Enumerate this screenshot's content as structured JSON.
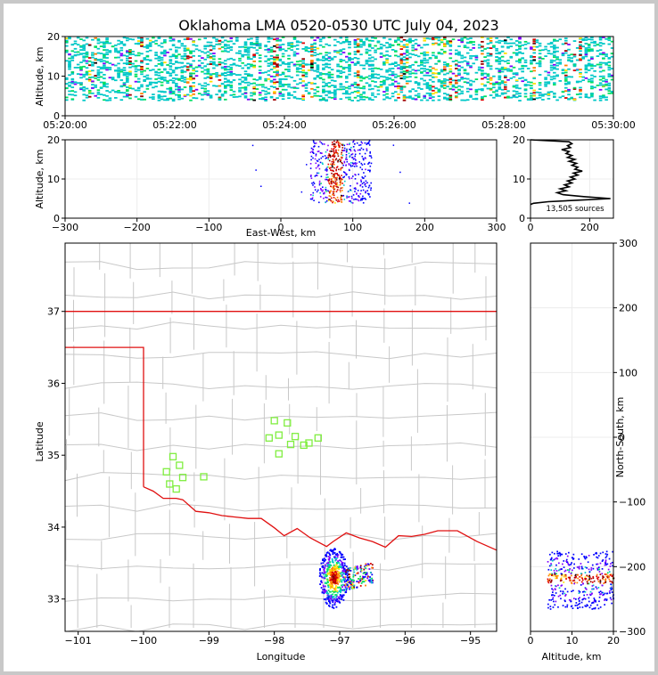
{
  "title": "Oklahoma LMA 0520-0530 UTC July 04, 2023",
  "colors": {
    "state_border": "#e01010",
    "county_border": "#c8c8c8",
    "station": "#80ee40",
    "density": [
      "#0000ff",
      "#8000ff",
      "#00c8c8",
      "#00e060",
      "#ffe000",
      "#ff8000",
      "#e00000",
      "#a00000",
      "#000000"
    ]
  },
  "chart_data": [
    {
      "id": "time_altitude",
      "type": "heatmap",
      "ylabel": "Altitude, km",
      "xticks": [
        "05:20:00",
        "05:22:00",
        "05:24:00",
        "05:26:00",
        "05:28:00",
        "05:30:00"
      ],
      "yticks": [
        "0",
        "10",
        "20"
      ],
      "xlim": [
        "05:20:00",
        "05:30:00"
      ],
      "ylim": [
        0,
        20
      ],
      "altitude_range_km": [
        4,
        20
      ]
    },
    {
      "id": "ew_altitude",
      "type": "heatmap",
      "xlabel": "East-West, km",
      "ylabel": "Altitude, km",
      "xticks": [
        "−300",
        "−200",
        "−100",
        "0",
        "100",
        "200",
        "300"
      ],
      "yticks": [
        "0",
        "10",
        "20"
      ],
      "xlim": [
        -300,
        300
      ],
      "ylim": [
        0,
        20
      ],
      "core_x_km": [
        65,
        85
      ],
      "spread_x_km": [
        40,
        125
      ],
      "altitude_range_km": [
        4,
        20
      ]
    },
    {
      "id": "altitude_histogram",
      "type": "line",
      "xticks": [
        "0",
        "200"
      ],
      "yticks": [
        "0",
        "10",
        "20"
      ],
      "xlim": [
        0,
        280
      ],
      "ylim": [
        0,
        20
      ],
      "annotation": "13,505 sources",
      "profile": [
        [
          0,
          3.5
        ],
        [
          10,
          3.8
        ],
        [
          60,
          4.2
        ],
        [
          160,
          4.6
        ],
        [
          270,
          5.0
        ],
        [
          180,
          5.5
        ],
        [
          110,
          6.0
        ],
        [
          90,
          6.5
        ],
        [
          120,
          7.0
        ],
        [
          100,
          7.5
        ],
        [
          130,
          8.0
        ],
        [
          115,
          8.5
        ],
        [
          140,
          9.0
        ],
        [
          125,
          9.5
        ],
        [
          150,
          10.0
        ],
        [
          135,
          10.5
        ],
        [
          160,
          11.0
        ],
        [
          145,
          11.5
        ],
        [
          175,
          12.0
        ],
        [
          150,
          12.5
        ],
        [
          160,
          13.0
        ],
        [
          140,
          13.5
        ],
        [
          155,
          14.0
        ],
        [
          130,
          14.5
        ],
        [
          150,
          15.0
        ],
        [
          125,
          15.5
        ],
        [
          140,
          16.0
        ],
        [
          120,
          16.5
        ],
        [
          130,
          17.0
        ],
        [
          105,
          17.5
        ],
        [
          135,
          18.0
        ],
        [
          125,
          18.5
        ],
        [
          140,
          19.0
        ],
        [
          130,
          19.5
        ],
        [
          0,
          20.0
        ]
      ]
    },
    {
      "id": "plan_view",
      "type": "heatmap",
      "xlabel": "Longitude",
      "ylabel": "Latitude",
      "xticks": [
        "−101",
        "−100",
        "−99",
        "−98",
        "−97",
        "−96",
        "−95"
      ],
      "yticks": [
        "33",
        "34",
        "35",
        "36",
        "37"
      ],
      "xlim": [
        -101.2,
        -94.6
      ],
      "ylim": [
        32.55,
        37.95
      ],
      "core": {
        "lon": -97.1,
        "lat": 33.3
      },
      "stations": [
        [
          -98.0,
          35.48
        ],
        [
          -97.8,
          35.45
        ],
        [
          -98.08,
          35.24
        ],
        [
          -97.93,
          35.28
        ],
        [
          -97.68,
          35.26
        ],
        [
          -97.75,
          35.15
        ],
        [
          -97.47,
          35.17
        ],
        [
          -97.33,
          35.24
        ],
        [
          -97.55,
          35.14
        ],
        [
          -97.93,
          35.02
        ],
        [
          -99.55,
          34.98
        ],
        [
          -99.45,
          34.86
        ],
        [
          -99.65,
          34.77
        ],
        [
          -99.4,
          34.69
        ],
        [
          -99.08,
          34.7
        ],
        [
          -99.6,
          34.6
        ],
        [
          -99.5,
          34.53
        ]
      ]
    },
    {
      "id": "ns_altitude",
      "type": "heatmap",
      "xlabel": "Altitude, km",
      "ylabel": "North-South, km",
      "xticks": [
        "0",
        "10",
        "20"
      ],
      "yticks": [
        "−300",
        "−200",
        "−100",
        "0",
        "100",
        "200",
        "300"
      ],
      "xlim": [
        0,
        20
      ],
      "ylim": [
        -300,
        300
      ],
      "core_y_km": [
        -225,
        -210
      ],
      "spread_y_km": [
        -265,
        -175
      ]
    }
  ]
}
